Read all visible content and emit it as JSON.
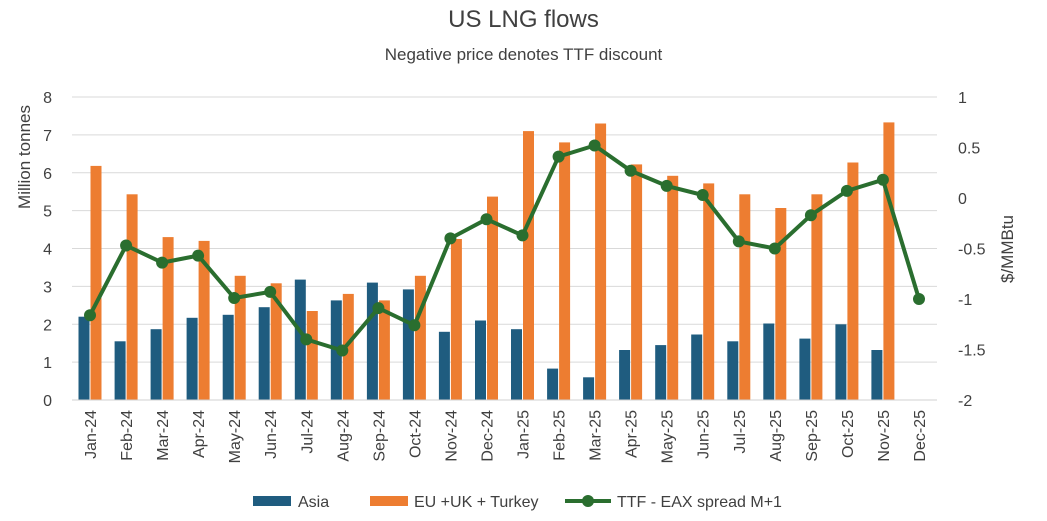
{
  "chart_data": {
    "type": "bar",
    "title": "US LNG flows",
    "subtitle": "Negative price denotes TTF discount",
    "categories": [
      "Jan-24",
      "Feb-24",
      "Mar-24",
      "Apr-24",
      "May-24",
      "Jun-24",
      "Jul-24",
      "Aug-24",
      "Sep-24",
      "Oct-24",
      "Nov-24",
      "Dec-24",
      "Jan-25",
      "Feb-25",
      "Mar-25",
      "Apr-25",
      "May-25",
      "Jun-25",
      "Jul-25",
      "Aug-25",
      "Sep-25",
      "Oct-25",
      "Nov-25",
      "Dec-25"
    ],
    "series": [
      {
        "name": "Asia",
        "type": "bar",
        "axis": "left",
        "color": "#1f5c7f",
        "values": [
          2.2,
          1.55,
          1.87,
          2.17,
          2.25,
          2.45,
          3.18,
          2.63,
          3.1,
          2.92,
          1.8,
          2.1,
          1.87,
          0.83,
          0.6,
          1.32,
          1.45,
          1.73,
          1.55,
          2.02,
          1.62,
          2.0,
          1.32,
          null
        ]
      },
      {
        "name": "EU +UK + Turkey",
        "type": "bar",
        "axis": "left",
        "color": "#ed7d31",
        "values": [
          6.18,
          5.43,
          4.3,
          4.2,
          3.28,
          3.08,
          2.35,
          2.8,
          2.63,
          3.28,
          4.25,
          5.37,
          7.1,
          6.8,
          7.3,
          6.22,
          5.92,
          5.72,
          5.43,
          5.07,
          5.43,
          6.27,
          7.33,
          null
        ]
      },
      {
        "name": "TTF - EAX spread M+1",
        "type": "line",
        "axis": "right",
        "color": "#2a6e2f",
        "values": [
          -1.16,
          -0.47,
          -0.64,
          -0.57,
          -0.99,
          -0.93,
          -1.4,
          -1.51,
          -1.09,
          -1.26,
          -0.4,
          -0.21,
          -0.37,
          0.41,
          0.52,
          0.27,
          0.12,
          0.03,
          -0.43,
          -0.5,
          -0.17,
          0.07,
          0.18,
          -1.0
        ]
      }
    ],
    "ylabel": "Million tonnes",
    "ylim": [
      0,
      8
    ],
    "yticks": [
      "0",
      "1",
      "2",
      "3",
      "4",
      "5",
      "6",
      "7",
      "8"
    ],
    "y2label": "$/MMBtu",
    "y2lim": [
      -2,
      1
    ],
    "y2ticks": [
      "-2",
      "-1.5",
      "-1",
      "-0.5",
      "0",
      "0.5",
      "1"
    ],
    "grid": true,
    "legend": "bottom",
    "legend_labels": [
      "Asia",
      "EU +UK + Turkey",
      "TTF - EAX spread M+1"
    ]
  }
}
